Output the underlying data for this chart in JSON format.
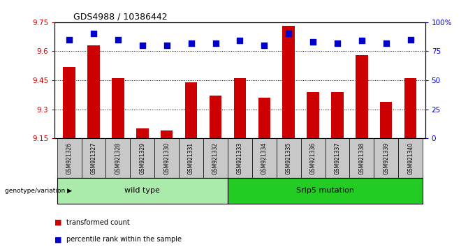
{
  "title": "GDS4988 / 10386442",
  "samples": [
    "GSM921326",
    "GSM921327",
    "GSM921328",
    "GSM921329",
    "GSM921330",
    "GSM921331",
    "GSM921332",
    "GSM921333",
    "GSM921334",
    "GSM921335",
    "GSM921336",
    "GSM921337",
    "GSM921338",
    "GSM921339",
    "GSM921340"
  ],
  "transformed_count": [
    9.52,
    9.63,
    9.46,
    9.2,
    9.19,
    9.44,
    9.37,
    9.46,
    9.36,
    9.73,
    9.39,
    9.39,
    9.58,
    9.34,
    9.46
  ],
  "percentile_rank": [
    85,
    90,
    85,
    80,
    80,
    82,
    82,
    84,
    80,
    90,
    83,
    82,
    84,
    82,
    85
  ],
  "ylim_left": [
    9.15,
    9.75
  ],
  "ylim_right": [
    0,
    100
  ],
  "yticks_left": [
    9.15,
    9.3,
    9.45,
    9.6,
    9.75
  ],
  "ytick_labels_left": [
    "9.15",
    "9.3",
    "9.45",
    "9.6",
    "9.75"
  ],
  "yticks_right": [
    0,
    25,
    50,
    75,
    100
  ],
  "ytick_labels_right": [
    "0",
    "25",
    "50",
    "75",
    "100%"
  ],
  "bar_color": "#cc0000",
  "dot_color": "#0000cc",
  "grid_color": "#000000",
  "group1_label": "wild type",
  "group2_label": "Srlp5 mutation",
  "group1_count": 7,
  "group2_count": 8,
  "group1_color": "#aaeaaa",
  "group2_color": "#22cc22",
  "xticklabel_bg": "#c8c8c8",
  "legend_items": [
    "transformed count",
    "percentile rank within the sample"
  ],
  "legend_colors": [
    "#cc0000",
    "#0000cc"
  ],
  "genotype_label": "genotype/variation",
  "bar_width": 0.5,
  "dot_size": 30,
  "title_fontsize": 9,
  "tick_fontsize": 7.5,
  "label_fontsize": 7.5
}
